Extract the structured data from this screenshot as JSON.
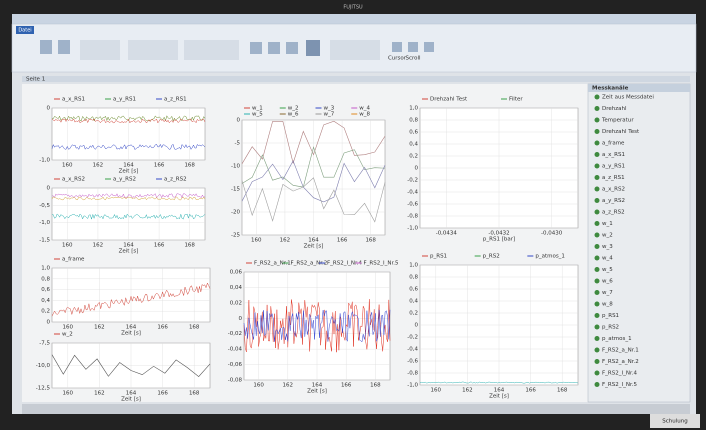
{
  "monitor": {
    "brand": "FUJITSU",
    "sticker": "Schulung"
  },
  "ribbon": {
    "tab": "Datei",
    "buttons": [
      "Cursor",
      "Scroll"
    ]
  },
  "workspace_tab": "Seite 1",
  "panels": [
    {
      "legend": [
        "a_x_RS1",
        "a_y_RS1",
        "a_z_RS1"
      ],
      "yticks": [
        "0",
        "-1,0"
      ],
      "xticks": [
        "160",
        "162",
        "164",
        "166",
        "168"
      ],
      "xlabel": "Zeit [s]"
    },
    {
      "legend": [
        "a_x_RS2",
        "a_y_RS2",
        "a_z_RS2"
      ],
      "yticks": [
        "0",
        "-0,5",
        "-1,0",
        "-1,5"
      ],
      "xticks": [
        "160",
        "162",
        "164",
        "166",
        "168"
      ],
      "xlabel": "Zeit [s]"
    },
    {
      "legend": [
        "a_frame"
      ],
      "yticks": [
        "1,0",
        "0,8",
        "0,6",
        "0,4",
        "0,2",
        "0"
      ],
      "xticks": [
        "160",
        "162",
        "164",
        "166",
        "168"
      ],
      "xlabel": "Zeit [s]"
    },
    {
      "legend": [
        "w_2"
      ],
      "yticks": [
        "-7,5",
        "-10,0",
        "-12,5"
      ],
      "xticks": [
        "160",
        "162",
        "164",
        "166",
        "168"
      ],
      "xlabel": "Zeit [s]"
    },
    {
      "legend": [
        "w_1",
        "w_2",
        "w_3",
        "w_4",
        "w_5",
        "w_6",
        "w_7",
        "w_8"
      ],
      "yticks": [
        "0",
        "-5",
        "-10",
        "-15",
        "-20",
        "-25"
      ],
      "xticks": [
        "160",
        "162",
        "164",
        "166",
        "168"
      ],
      "xlabel": "Zeit [s]"
    },
    {
      "legend": [
        "F_RS2_a_Nr.1",
        "F_RS2_a_Nr.2",
        "F_RS2_I_Nr.4",
        "F_RS2_I_Nr.5"
      ],
      "yticks": [
        "0,06",
        "0,04",
        "0,02",
        "0",
        "-0,02",
        "-0,04",
        "-0,06",
        "-0,08"
      ],
      "xticks": [
        "160",
        "162",
        "164",
        "166",
        "168"
      ],
      "xlabel": "Zeit [s]"
    },
    {
      "legend": [
        "Drehzahl Test",
        "Filter"
      ],
      "yticks": [
        "1,0",
        "0,8",
        "0,6",
        "0,4",
        "0,2",
        "0",
        "-0,2",
        "-0,4",
        "-0,6",
        "-0,8",
        "-1,0"
      ],
      "xticks": [
        "-0,0434",
        "-0,0432",
        "-0,0430"
      ],
      "xlabel": "p_RS1 [bar]"
    },
    {
      "legend": [
        "p_RS1",
        "p_RS2",
        "p_atmos_1"
      ],
      "yticks": [
        "1,0",
        "0,8",
        "0,6",
        "0,4",
        "0,2",
        "0",
        "-0,2",
        "-0,4",
        "-0,6",
        "-0,8",
        "-1,0"
      ],
      "xticks": [
        "160",
        "162",
        "164",
        "166",
        "168"
      ],
      "xlabel": "Zeit [s]"
    }
  ],
  "sidebar": {
    "title": "Messkanäle",
    "items": [
      "Zeit aus Messdatei",
      "Drehzahl",
      "Temperatur",
      "Drehzahl Test",
      "a_frame",
      "a_x_RS1",
      "a_y_RS1",
      "a_z_RS1",
      "a_x_RS2",
      "a_y_RS2",
      "a_z_RS2",
      "w_1",
      "w_2",
      "w_3",
      "w_4",
      "w_5",
      "w_6",
      "w_7",
      "w_8",
      "p_RS1",
      "p_RS2",
      "p_atmos_1",
      "F_RS2_a_Nr.1",
      "F_RS2_a_Nr.2",
      "F_RS2_I_Nr.4",
      "F_RS2_I_Nr.5"
    ]
  }
}
